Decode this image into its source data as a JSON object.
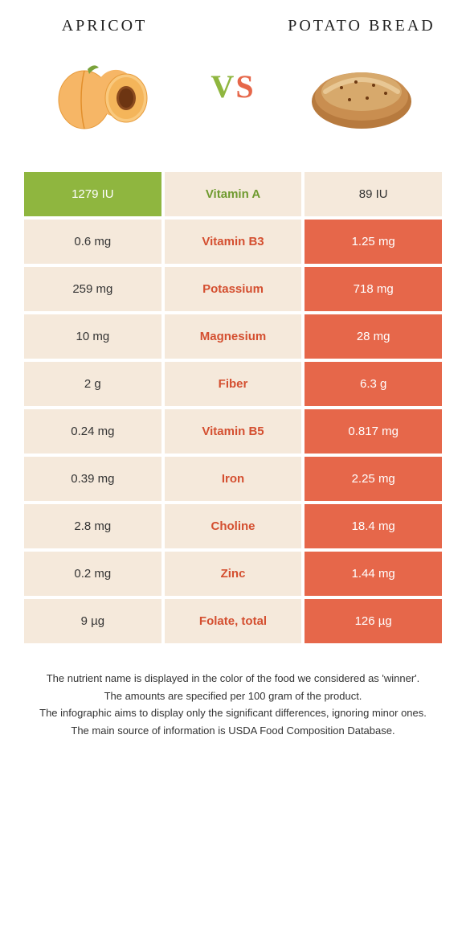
{
  "colors": {
    "green": "#8fb63f",
    "orange": "#e6674a",
    "pale": "#f5e9db",
    "green_text": "#6f9a2f",
    "orange_text": "#d44f30"
  },
  "header": {
    "left_title": "Apricot",
    "right_title": "Potato bread",
    "vs_left": "V",
    "vs_right": "S"
  },
  "rows": [
    {
      "left": "1279 IU",
      "name": "Vitamin A",
      "right": "89 IU",
      "winner": "left"
    },
    {
      "left": "0.6 mg",
      "name": "Vitamin B3",
      "right": "1.25 mg",
      "winner": "right"
    },
    {
      "left": "259 mg",
      "name": "Potassium",
      "right": "718 mg",
      "winner": "right"
    },
    {
      "left": "10 mg",
      "name": "Magnesium",
      "right": "28 mg",
      "winner": "right"
    },
    {
      "left": "2 g",
      "name": "Fiber",
      "right": "6.3 g",
      "winner": "right"
    },
    {
      "left": "0.24 mg",
      "name": "Vitamin B5",
      "right": "0.817 mg",
      "winner": "right"
    },
    {
      "left": "0.39 mg",
      "name": "Iron",
      "right": "2.25 mg",
      "winner": "right"
    },
    {
      "left": "2.8 mg",
      "name": "Choline",
      "right": "18.4 mg",
      "winner": "right"
    },
    {
      "left": "0.2 mg",
      "name": "Zinc",
      "right": "1.44 mg",
      "winner": "right"
    },
    {
      "left": "9 µg",
      "name": "Folate, total",
      "right": "126 µg",
      "winner": "right"
    }
  ],
  "footnotes": [
    "The nutrient name is displayed in the color of the food we considered as 'winner'.",
    "The amounts are specified per 100 gram of the product.",
    "The infographic aims to display only the significant differences, ignoring minor ones.",
    "The main source of information is USDA Food Composition Database."
  ]
}
